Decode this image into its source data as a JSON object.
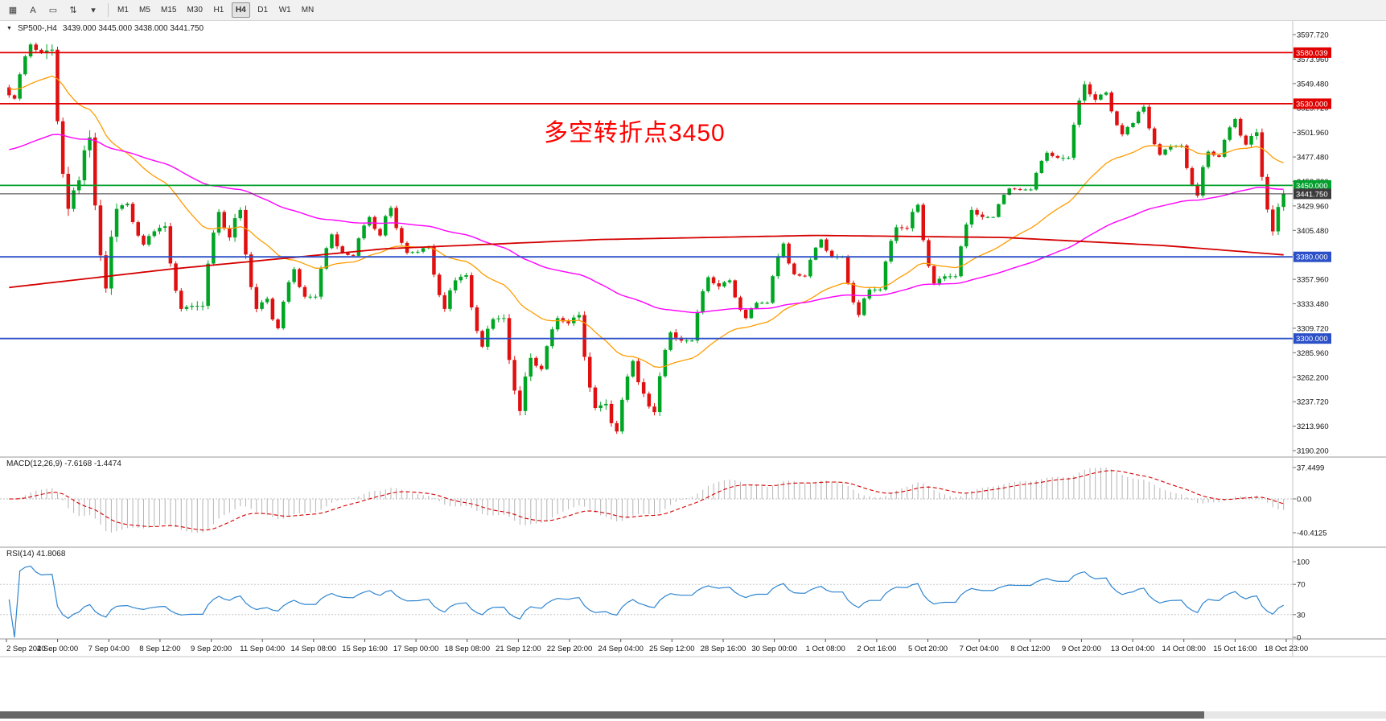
{
  "toolbar": {
    "icons": [
      {
        "name": "chart-list-icon",
        "glyph": "▦"
      },
      {
        "name": "text-tool-icon",
        "glyph": "A"
      },
      {
        "name": "frame-tool-icon",
        "glyph": "▭"
      },
      {
        "name": "scale-tool-icon",
        "glyph": "⇅"
      },
      {
        "name": "dropdown-caret-icon",
        "glyph": "▾"
      }
    ],
    "timeframes": [
      "M1",
      "M5",
      "M15",
      "M30",
      "H1",
      "H4",
      "D1",
      "W1",
      "MN"
    ],
    "active_timeframe": "H4"
  },
  "chart": {
    "expander_glyph": "▼",
    "title": "SP500-,H4",
    "ohlc": "3439.000 3445.000 3438.000 3441.750",
    "annotation": {
      "text": "多空转折点3450",
      "color": "#FF0000"
    },
    "price_axis_labels": [
      "3597.720",
      "3573.960",
      "3549.480",
      "3525.720",
      "3501.960",
      "3477.480",
      "3453.720",
      "3429.960",
      "3405.480",
      "3381.720",
      "3357.960",
      "3333.480",
      "3309.720",
      "3285.960",
      "3262.200",
      "3237.720",
      "3213.960",
      "3190.200"
    ],
    "hlines": [
      {
        "price": 3580.039,
        "label": "3580.039",
        "color": "#E00000"
      },
      {
        "price": 3530.0,
        "label": "3530.000",
        "color": "#E00000"
      },
      {
        "price": 3450.0,
        "label": "3450.000",
        "color": "#00A02C"
      },
      {
        "price": 3380.0,
        "label": "3380.000",
        "color": "#2B4FC8"
      },
      {
        "price": 3300.0,
        "label": "3300.000",
        "color": "#2B4FC8"
      }
    ],
    "current_price": {
      "value": 3441.75,
      "label": "3441.750",
      "color": "#3A3A3A",
      "box_color": "#3C3C3C"
    },
    "time_axis_labels": [
      "2 Sep 2020",
      "4 Sep 00:00",
      "7 Sep 04:00",
      "8 Sep 12:00",
      "9 Sep 20:00",
      "11 Sep 04:00",
      "14 Sep 08:00",
      "15 Sep 16:00",
      "17 Sep 00:00",
      "18 Sep 08:00",
      "21 Sep 12:00",
      "22 Sep 20:00",
      "24 Sep 04:00",
      "25 Sep 12:00",
      "28 Sep 16:00",
      "30 Sep 00:00",
      "1 Oct 08:00",
      "2 Oct 16:00",
      "5 Oct 20:00",
      "7 Oct 04:00",
      "8 Oct 12:00",
      "9 Oct 20:00",
      "13 Oct 04:00",
      "14 Oct 08:00",
      "15 Oct 16:00",
      "18 Oct 23:00"
    ]
  },
  "chart_data": {
    "type": "candlestick",
    "symbol": "SP500-",
    "timeframe": "H4",
    "ylim": [
      3190.2,
      3597.72
    ],
    "up_color": "#00A524",
    "down_color": "#E01010",
    "bars_per_day": 7,
    "days": [
      [
        "2 Sep",
        3546,
        3588,
        3535,
        3580
      ],
      [
        "3 Sep",
        3580,
        3583,
        3427,
        3455
      ],
      [
        "4 Sep",
        3455,
        3497,
        3349,
        3427
      ],
      [
        "7 Sep",
        3427,
        3432,
        3392,
        3405
      ],
      [
        "8 Sep",
        3405,
        3410,
        3329,
        3332
      ],
      [
        "9 Sep",
        3332,
        3424,
        3332,
        3399
      ],
      [
        "10 Sep",
        3399,
        3426,
        3329,
        3339
      ],
      [
        "11 Sep",
        3339,
        3368,
        3310,
        3341
      ],
      [
        "14 Sep",
        3341,
        3402,
        3341,
        3384
      ],
      [
        "15 Sep",
        3384,
        3419,
        3381,
        3401
      ],
      [
        "16 Sep",
        3401,
        3428,
        3384,
        3385
      ],
      [
        "17 Sep",
        3385,
        3390,
        3329,
        3357
      ],
      [
        "18 Sep",
        3357,
        3362,
        3292,
        3319
      ],
      [
        "21 Sep",
        3319,
        3320,
        3229,
        3281
      ],
      [
        "22 Sep",
        3281,
        3320,
        3270,
        3315
      ],
      [
        "23 Sep",
        3315,
        3323,
        3232,
        3236
      ],
      [
        "24 Sep",
        3236,
        3278,
        3209,
        3246
      ],
      [
        "25 Sep",
        3246,
        3306,
        3228,
        3298
      ],
      [
        "28 Sep",
        3298,
        3360,
        3298,
        3351
      ],
      [
        "29 Sep",
        3351,
        3357,
        3320,
        3335
      ],
      [
        "30 Sep",
        3335,
        3393,
        3335,
        3363
      ],
      [
        "1 Oct",
        3363,
        3397,
        3361,
        3380
      ],
      [
        "2 Oct",
        3380,
        3380,
        3323,
        3348
      ],
      [
        "5 Oct",
        3348,
        3409,
        3348,
        3408
      ],
      [
        "6 Oct",
        3408,
        3431,
        3354,
        3361
      ],
      [
        "7 Oct",
        3361,
        3426,
        3361,
        3419
      ],
      [
        "8 Oct",
        3419,
        3447,
        3419,
        3446
      ],
      [
        "9 Oct",
        3446,
        3482,
        3446,
        3477
      ],
      [
        "12 Oct",
        3477,
        3549,
        3477,
        3534
      ],
      [
        "13 Oct",
        3534,
        3541,
        3500,
        3511
      ],
      [
        "14 Oct",
        3511,
        3527,
        3480,
        3488
      ],
      [
        "15 Oct",
        3488,
        3489,
        3440,
        3483
      ],
      [
        "16 Oct",
        3483,
        3515,
        3478,
        3490
      ],
      [
        "19 Oct",
        3490,
        3502,
        3405,
        3441.75
      ]
    ],
    "ma_lines": [
      {
        "name": "ma-fast-orange",
        "period": 30,
        "seed": 3545,
        "color": "#FF9C00",
        "width": 1.3
      },
      {
        "name": "ma-mid-magenta",
        "period": 90,
        "seed": 3484,
        "color": "#FF00FF",
        "width": 1.4
      },
      {
        "name": "ma-slow-red",
        "color": "#D40000",
        "width": 1.8,
        "anchors": [
          [
            0,
            3350
          ],
          [
            30,
            3368
          ],
          [
            70,
            3388
          ],
          [
            110,
            3397
          ],
          [
            150,
            3401
          ],
          [
            185,
            3399
          ],
          [
            215,
            3391
          ],
          [
            237,
            3382
          ]
        ]
      }
    ]
  },
  "macd_panel": {
    "label": "MACD(12,26,9) -7.6168 -1.4474",
    "axis_labels": [
      "37.4499",
      "0.00",
      "-40.4125"
    ],
    "axis_max_value": 37.4499,
    "axis_min_value": -40.4125,
    "params": {
      "fast": 12,
      "slow": 26,
      "signal": 9
    },
    "histogram_color": "#B4B4B4",
    "signal_color": "#D40000"
  },
  "rsi_panel": {
    "label": "RSI(14) 41.8068",
    "period": 14,
    "axis_labels": [
      "100",
      "70",
      "30",
      "0"
    ],
    "levels": [
      70,
      30
    ],
    "line_color": "#2F85D0"
  }
}
